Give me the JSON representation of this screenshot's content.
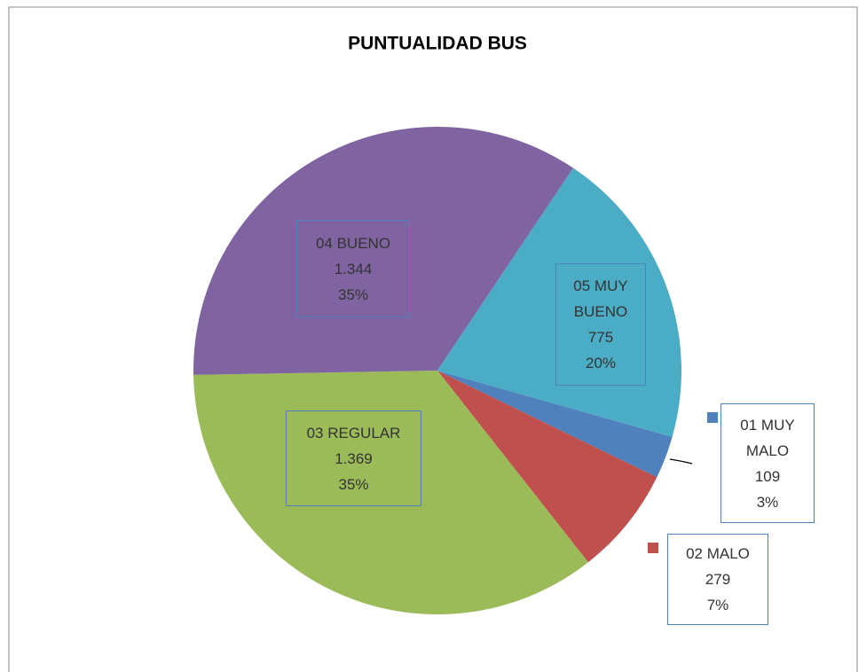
{
  "chart_data": {
    "type": "pie",
    "title": "PUNTUALIDAD BUS",
    "categories": [
      "01 MUY MALO",
      "02 MALO",
      "03 REGULAR",
      "04 BUENO",
      "05 MUY BUENO"
    ],
    "values": [
      109,
      279,
      1369,
      1344,
      775
    ],
    "value_labels": [
      "109",
      "279",
      "1.369",
      "1.344",
      "775"
    ],
    "percent_labels": [
      "3%",
      "7%",
      "35%",
      "35%",
      "20%"
    ],
    "colors": [
      "#4f81bd",
      "#c0504d",
      "#9bbb59",
      "#8064a2",
      "#4bacc6"
    ]
  }
}
